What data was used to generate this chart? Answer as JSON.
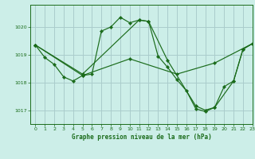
{
  "title": "Graphe pression niveau de la mer (hPa)",
  "bg_color": "#cceee8",
  "grid_color": "#aacccc",
  "line_color": "#1a6b1a",
  "xlim": [
    -0.5,
    23
  ],
  "ylim": [
    1016.5,
    1020.8
  ],
  "yticks": [
    1017,
    1018,
    1019,
    1020
  ],
  "xticks": [
    0,
    1,
    2,
    3,
    4,
    5,
    6,
    7,
    8,
    9,
    10,
    11,
    12,
    13,
    14,
    15,
    16,
    17,
    18,
    19,
    20,
    21,
    22,
    23
  ],
  "series": [
    {
      "x": [
        0,
        1,
        2,
        3,
        4,
        5,
        6,
        7,
        8,
        9,
        10,
        11,
        12,
        13,
        14,
        15,
        16,
        17,
        18,
        19,
        20,
        21,
        22,
        23
      ],
      "y": [
        1019.35,
        1018.9,
        1018.65,
        1018.2,
        1018.05,
        1018.25,
        1018.3,
        1019.85,
        1020.0,
        1020.35,
        1020.15,
        1020.25,
        1020.2,
        1018.95,
        1018.55,
        1018.1,
        1017.7,
        1017.05,
        1016.95,
        1017.1,
        1017.85,
        1018.05,
        1019.2,
        1019.4
      ]
    },
    {
      "x": [
        0,
        5,
        11,
        12,
        14,
        17,
        18,
        19,
        21,
        22,
        23
      ],
      "y": [
        1019.35,
        1018.3,
        1020.25,
        1020.2,
        1018.8,
        1017.15,
        1017.0,
        1017.1,
        1018.05,
        1019.2,
        1019.4
      ]
    },
    {
      "x": [
        0,
        5,
        10,
        15,
        19,
        23
      ],
      "y": [
        1019.35,
        1018.25,
        1018.85,
        1018.3,
        1018.7,
        1019.4
      ]
    }
  ]
}
